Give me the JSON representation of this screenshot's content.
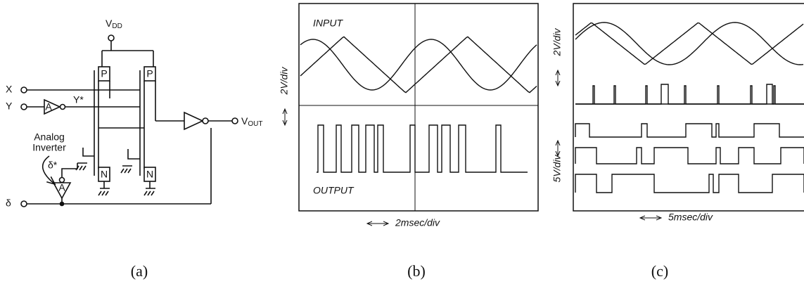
{
  "circuit": {
    "supply": {
      "base": "V",
      "sub": "DD"
    },
    "inputs": [
      "X",
      "Y",
      "δ"
    ],
    "y_star": "Y*",
    "delta_star": "δ*",
    "amplifiers": [
      "A",
      "A"
    ],
    "note": [
      "Analog",
      "Inverter"
    ],
    "transistors": [
      "P",
      "P",
      "N",
      "N"
    ],
    "output": {
      "base": "V",
      "sub": "OUT"
    }
  },
  "panel_b": {
    "top_label": "INPUT",
    "bottom_label": "OUTPUT",
    "y_scale": "2V/div",
    "x_scale": "2msec/div"
  },
  "panel_c": {
    "y_scale_top": "2V/div",
    "y_scale_bottom": "5V/div",
    "x_scale": "5msec/div"
  },
  "captions": [
    "(a)",
    "(b)",
    "(c)"
  ]
}
